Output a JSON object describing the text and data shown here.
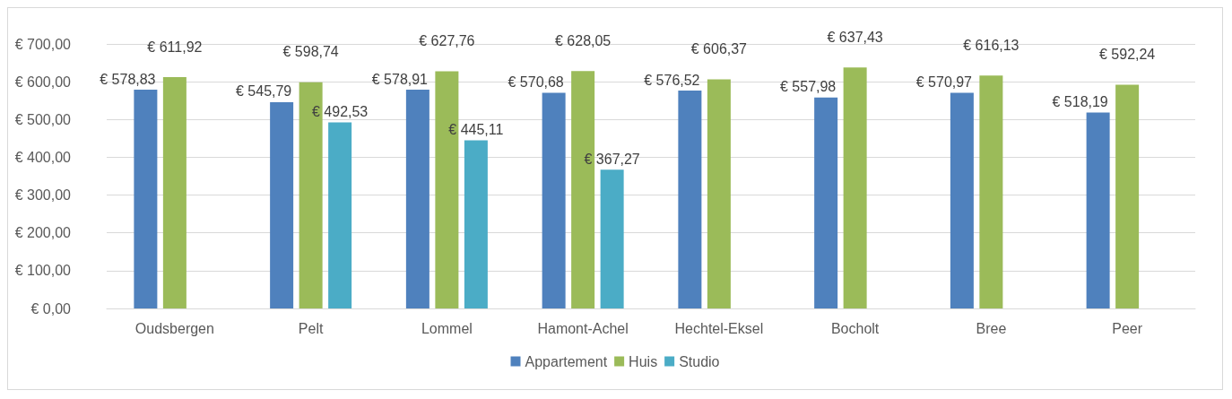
{
  "chart_data": {
    "type": "bar",
    "categories": [
      "Oudsbergen",
      "Pelt",
      "Lommel",
      "Hamont-Achel",
      "Hechtel-Eksel",
      "Bocholt",
      "Bree",
      "Peer"
    ],
    "series": [
      {
        "name": "Appartement",
        "color": "#4f81bd",
        "values": [
          578.83,
          545.79,
          578.91,
          570.68,
          576.52,
          557.98,
          570.97,
          518.19
        ],
        "value_labels": [
          "€ 578,83",
          "€ 545,79",
          "€ 578,91",
          "€ 570,68",
          "€ 576,52",
          "€ 557,98",
          "€ 570,97",
          "€ 518,19"
        ]
      },
      {
        "name": "Huis",
        "color": "#9bbb59",
        "values": [
          611.92,
          598.74,
          627.76,
          628.05,
          606.37,
          637.43,
          616.13,
          592.24
        ],
        "value_labels": [
          "€ 611,92",
          "€ 598,74",
          "€ 627,76",
          "€ 628,05",
          "€ 606,37",
          "€ 637,43",
          "€ 616,13",
          "€ 592,24"
        ]
      },
      {
        "name": "Studio",
        "color": "#4bacc6",
        "values": [
          null,
          492.53,
          445.11,
          367.27,
          null,
          null,
          null,
          null
        ],
        "value_labels": [
          null,
          "€ 492,53",
          "€ 445,11",
          "€ 367,27",
          null,
          null,
          null,
          null
        ]
      }
    ],
    "ylim": [
      0,
      700
    ],
    "yticks": [
      {
        "value": 0,
        "label": "€ 0,00"
      },
      {
        "value": 100,
        "label": "€ 100,00"
      },
      {
        "value": 200,
        "label": "€ 200,00"
      },
      {
        "value": 300,
        "label": "€ 300,00"
      },
      {
        "value": 400,
        "label": "€ 400,00"
      },
      {
        "value": 500,
        "label": "€ 500,00"
      },
      {
        "value": 600,
        "label": "€ 600,00"
      },
      {
        "value": 700,
        "label": "€ 700,00"
      }
    ],
    "grid": "y",
    "legend": "bottom"
  }
}
